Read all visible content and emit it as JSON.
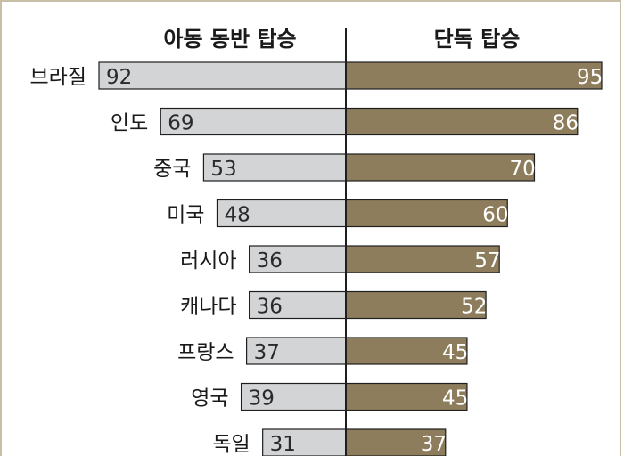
{
  "colors": {
    "left_bar": "#d3d4d6",
    "right_bar": "#8e7d5c",
    "bar_stroke": "#1e1e1e",
    "frame": "#c9bfa6"
  },
  "chart_data": {
    "type": "bar",
    "headers": {
      "left": "아동 동반 탑승",
      "right": "단독 탑승"
    },
    "categories": [
      "브라질",
      "인도",
      "중국",
      "미국",
      "러시아",
      "캐나다",
      "프랑스",
      "영국",
      "독일"
    ],
    "series": [
      {
        "name": "아동 동반 탑승",
        "values": [
          92,
          69,
          53,
          48,
          36,
          36,
          37,
          39,
          31
        ]
      },
      {
        "name": "단독 탑승",
        "values": [
          95,
          86,
          70,
          60,
          57,
          52,
          45,
          45,
          37
        ]
      }
    ]
  }
}
